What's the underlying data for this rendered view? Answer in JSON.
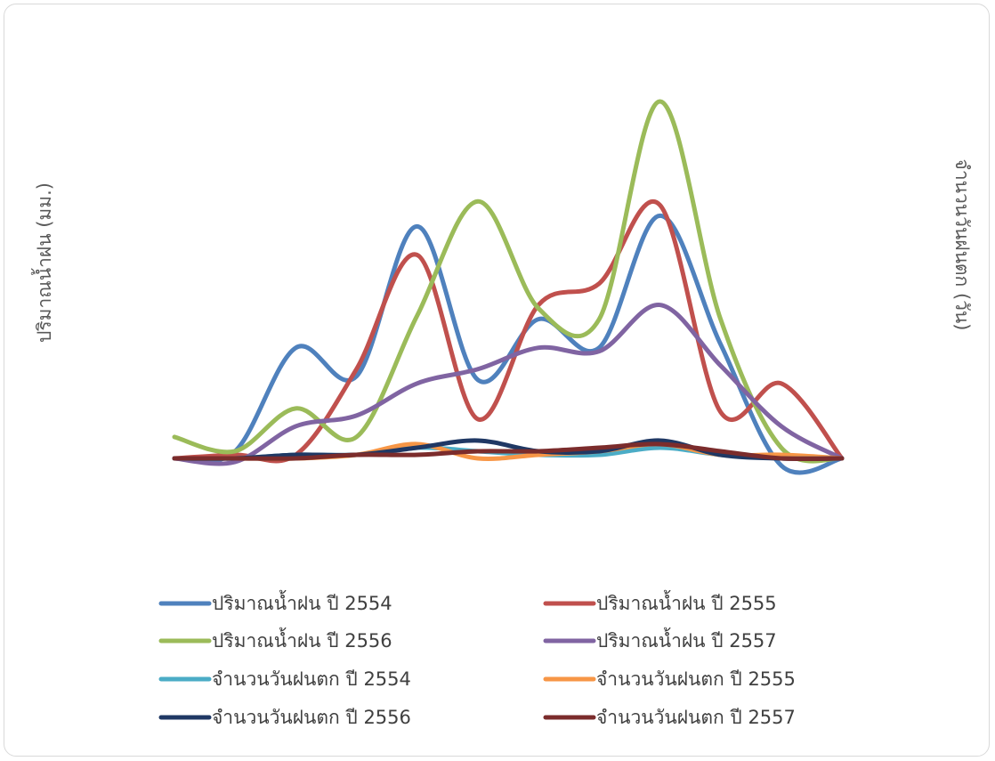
{
  "chart_data": {
    "type": "line",
    "smooth": true,
    "title": "",
    "ylabel_left": "ปริมาณน้ำฝน (มม.)",
    "ylabel_right": "จำนวนวันฝนตก (วัน)",
    "categories_count": 12,
    "ylim": [
      0,
      100
    ],
    "grid": false,
    "legend_position": "bottom",
    "series": [
      {
        "name": "ปริมาณน้ำฝน ปี 2554",
        "color": "#4f81bd",
        "values": [
          0,
          2,
          31,
          23,
          65,
          22,
          39,
          31,
          68,
          32,
          -2,
          0
        ]
      },
      {
        "name": "ปริมาณน้ำฝน ปี 2555",
        "color": "#c0504d",
        "values": [
          0,
          1,
          1,
          25,
          57,
          11,
          43,
          49,
          71,
          13,
          21,
          0
        ]
      },
      {
        "name": "ปริมาณน้ำฝน ปี 2556",
        "color": "#9bbb59",
        "values": [
          6,
          2,
          14,
          6,
          40,
          72,
          42,
          39,
          100,
          39,
          3,
          0
        ]
      },
      {
        "name": "ปริมาณน้ำฝน ปี 2557",
        "color": "#8064a2",
        "values": [
          0,
          -1,
          9,
          12,
          21,
          25,
          31,
          30,
          43,
          26,
          9,
          0
        ]
      },
      {
        "name": "จำนวนวันฝนตก ปี 2554",
        "color": "#4bacc6",
        "values": [
          0,
          0,
          1,
          1,
          3,
          2,
          1,
          1,
          3,
          1,
          0,
          0
        ]
      },
      {
        "name": "จำนวนวันฝนตก ปี 2555",
        "color": "#f79646",
        "values": [
          0,
          0,
          0,
          1,
          4,
          0,
          1,
          2,
          4,
          1,
          1,
          0
        ]
      },
      {
        "name": "จำนวนวันฝนตก ปี 2556",
        "color": "#1f3864",
        "values": [
          0,
          0,
          1,
          1,
          3,
          5,
          2,
          2,
          5,
          1,
          0,
          0
        ]
      },
      {
        "name": "จำนวนวันฝนตก ปี 2557",
        "color": "#7b2c2c",
        "values": [
          0,
          0,
          0,
          1,
          1,
          2,
          2,
          3,
          4,
          2,
          0,
          0
        ]
      }
    ]
  }
}
